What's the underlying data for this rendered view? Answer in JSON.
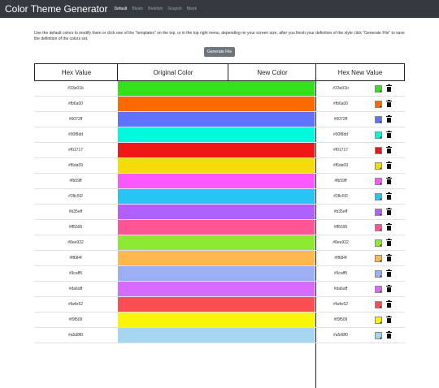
{
  "navbar": {
    "brand": "Color Theme Generator",
    "tabs": [
      "Default",
      "Bluish",
      "Reddish",
      "Grayish",
      "Blank"
    ]
  },
  "intro": "Use the default colors to modify them or click one of the \"templates\" on the top, or in the top right menu, depending on your screen size, after you finish your definition of the style click \"Generate File\" to save the definition of the colors set.",
  "generate_button": "Generate File",
  "table": {
    "headers": [
      "Hex Value",
      "Original Color",
      "New Color",
      "Hex New Value"
    ],
    "rows": [
      {
        "hex": "#33e01b",
        "new_hex": "#33e01b"
      },
      {
        "hex": "#fb6a00",
        "new_hex": "#fb6a00"
      },
      {
        "hex": "#6072ff",
        "new_hex": "#6072ff"
      },
      {
        "hex": "#00f8dd",
        "new_hex": "#00f8dd"
      },
      {
        "hex": "#f01717",
        "new_hex": "#f01717"
      },
      {
        "hex": "#f6da09",
        "new_hex": "#f6da09"
      },
      {
        "hex": "#fb59ff",
        "new_hex": "#fb59ff"
      },
      {
        "hex": "#28c5f2",
        "new_hex": "#28c5f2"
      },
      {
        "hex": "#b35eff",
        "new_hex": "#b35eff"
      },
      {
        "hex": "#ff5595",
        "new_hex": "#ff5595"
      },
      {
        "hex": "#8ee932",
        "new_hex": "#8ee932"
      },
      {
        "hex": "#ffb84f",
        "new_hex": "#ffb84f"
      },
      {
        "hex": "#9caff5",
        "new_hex": "#9caff5"
      },
      {
        "hex": "#da6aff",
        "new_hex": "#da6aff"
      },
      {
        "hex": "#fa4e52",
        "new_hex": "#fa4e52"
      },
      {
        "hex": "#f9f509",
        "new_hex": "#f9f509"
      },
      {
        "hex": "#a5d8f0",
        "new_hex": "#a5d8f0"
      }
    ]
  },
  "icons": {
    "picker": "color-picker-icon",
    "delete": "trash-icon"
  }
}
